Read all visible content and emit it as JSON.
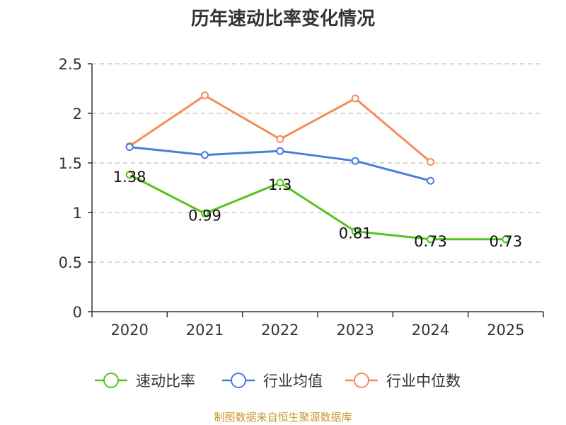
{
  "chart_data": {
    "type": "line",
    "title": "历年速动比率变化情况",
    "xlabel": "",
    "ylabel": "",
    "categories": [
      "2020",
      "2021",
      "2022",
      "2023",
      "2024",
      "2025"
    ],
    "ylim": [
      0,
      2.5
    ],
    "yticks": [
      0,
      0.5,
      1,
      1.5,
      2,
      2.5
    ],
    "ytick_labels": [
      "0",
      "0.5",
      "1",
      "1.5",
      "2",
      "2.5"
    ],
    "grid": true,
    "legend_position": "bottom",
    "series": [
      {
        "name": "速动比率",
        "color": "#52c41a",
        "values": [
          1.38,
          0.99,
          1.3,
          0.81,
          0.73,
          0.73
        ],
        "labels": [
          "1.38",
          "0.99",
          "1.3",
          "0.81",
          "0.73",
          "0.73"
        ]
      },
      {
        "name": "行业均值",
        "color": "#4a7fd6",
        "values": [
          1.66,
          1.58,
          1.62,
          1.52,
          1.32,
          null
        ]
      },
      {
        "name": "行业中位数",
        "color": "#f58c5a",
        "values": [
          1.67,
          2.18,
          1.74,
          2.15,
          1.51,
          null
        ]
      }
    ]
  },
  "source_note": "制图数据来自恒生聚源数据库"
}
